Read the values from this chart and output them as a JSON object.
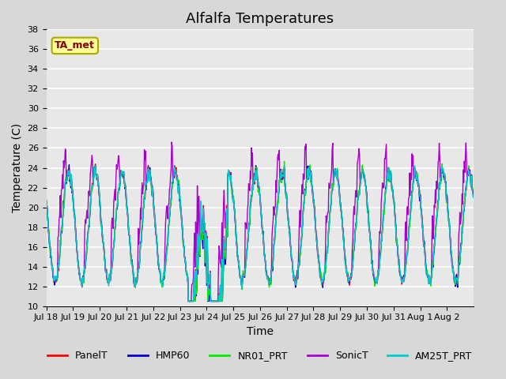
{
  "title": "Alfalfa Temperatures",
  "ylabel": "Temperature (C)",
  "xlabel": "Time",
  "annotation": "TA_met",
  "ylim": [
    10,
    38
  ],
  "background_color": "#d8d8d8",
  "plot_bg_color": "#e8e8e8",
  "grid_color": "white",
  "series": {
    "PanelT": {
      "color": "#ff0000",
      "lw": 1.0
    },
    "HMP60": {
      "color": "#0000cc",
      "lw": 1.0
    },
    "NR01_PRT": {
      "color": "#00ee00",
      "lw": 1.0
    },
    "SonicT": {
      "color": "#aa00cc",
      "lw": 1.0
    },
    "AM25T_PRT": {
      "color": "#00cccc",
      "lw": 1.0
    }
  },
  "x_tick_labels": [
    "Jul 18",
    "Jul 19",
    "Jul 20",
    "Jul 21",
    "Jul 22",
    "Jul 23",
    "Jul 24",
    "Jul 25",
    "Jul 26",
    "Jul 27",
    "Jul 28",
    "Jul 29",
    "Jul 30",
    "Jul 31",
    "Aug 1",
    "Aug 2"
  ],
  "legend_fontsize": 9,
  "title_fontsize": 13,
  "tick_fontsize": 8
}
